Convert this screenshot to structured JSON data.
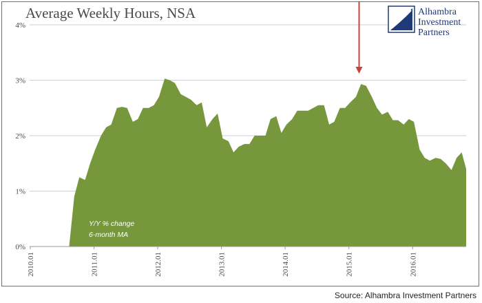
{
  "chart_data": {
    "type": "area",
    "title": "Average Weekly Hours, NSA",
    "annotation_lines": [
      "Y/Y % change",
      "6-month MA"
    ],
    "y_ticks": [
      "0%",
      "1%",
      "2%",
      "3%",
      "4%"
    ],
    "x_ticks": [
      "2010.01",
      "2011.01",
      "2012.01",
      "2013.01",
      "2014.01",
      "2015.01",
      "2016.01"
    ],
    "ylim": [
      0,
      4
    ],
    "xlim": [
      2010.0,
      2016.85
    ],
    "grid": "horizontal",
    "fill_color": "#76973b",
    "arrow_color": "#c8413b",
    "arrow_at_x": 2015.17,
    "series": [
      {
        "x": [
          2010.62,
          2010.7,
          2010.78,
          2010.87,
          2010.95,
          2011.03,
          2011.12,
          2011.2,
          2011.28,
          2011.37,
          2011.45,
          2011.53,
          2011.62,
          2011.7,
          2011.78,
          2011.87,
          2011.95,
          2012.03,
          2012.12,
          2012.2,
          2012.28,
          2012.37,
          2012.45,
          2012.53,
          2012.62,
          2012.7,
          2012.78,
          2012.87,
          2012.95,
          2013.03,
          2013.12,
          2013.2,
          2013.28,
          2013.37,
          2013.45,
          2013.53,
          2013.62,
          2013.7,
          2013.78,
          2013.87,
          2013.95,
          2014.03,
          2014.12,
          2014.2,
          2014.28,
          2014.37,
          2014.45,
          2014.53,
          2014.62,
          2014.7,
          2014.78,
          2014.87,
          2014.95,
          2015.03,
          2015.12,
          2015.2,
          2015.28,
          2015.37,
          2015.45,
          2015.53,
          2015.62,
          2015.7,
          2015.78,
          2015.87,
          2015.95,
          2016.03,
          2016.12,
          2016.2,
          2016.28,
          2016.37,
          2016.45,
          2016.53,
          2016.62,
          2016.7,
          2016.78,
          2016.85
        ],
        "values": [
          0.0,
          0.9,
          1.25,
          1.2,
          1.5,
          1.75,
          2.0,
          2.15,
          2.2,
          2.5,
          2.52,
          2.5,
          2.25,
          2.3,
          2.5,
          2.5,
          2.55,
          2.7,
          3.03,
          3.0,
          2.95,
          2.75,
          2.7,
          2.65,
          2.55,
          2.6,
          2.15,
          2.3,
          2.4,
          1.95,
          1.9,
          1.7,
          1.8,
          1.85,
          1.85,
          2.0,
          2.0,
          2.0,
          2.3,
          2.35,
          2.05,
          2.2,
          2.3,
          2.45,
          2.45,
          2.45,
          2.5,
          2.55,
          2.55,
          2.2,
          2.25,
          2.5,
          2.5,
          2.6,
          2.7,
          2.93,
          2.9,
          2.7,
          2.5,
          2.38,
          2.43,
          2.28,
          2.28,
          2.2,
          2.3,
          2.25,
          1.75,
          1.6,
          1.55,
          1.6,
          1.58,
          1.5,
          1.38,
          1.6,
          1.7,
          1.4
        ]
      }
    ]
  },
  "logo": {
    "lines": [
      "Alhambra",
      "Investment",
      "Partners"
    ]
  },
  "source_text": "Source: Alhambra Investment Partners"
}
